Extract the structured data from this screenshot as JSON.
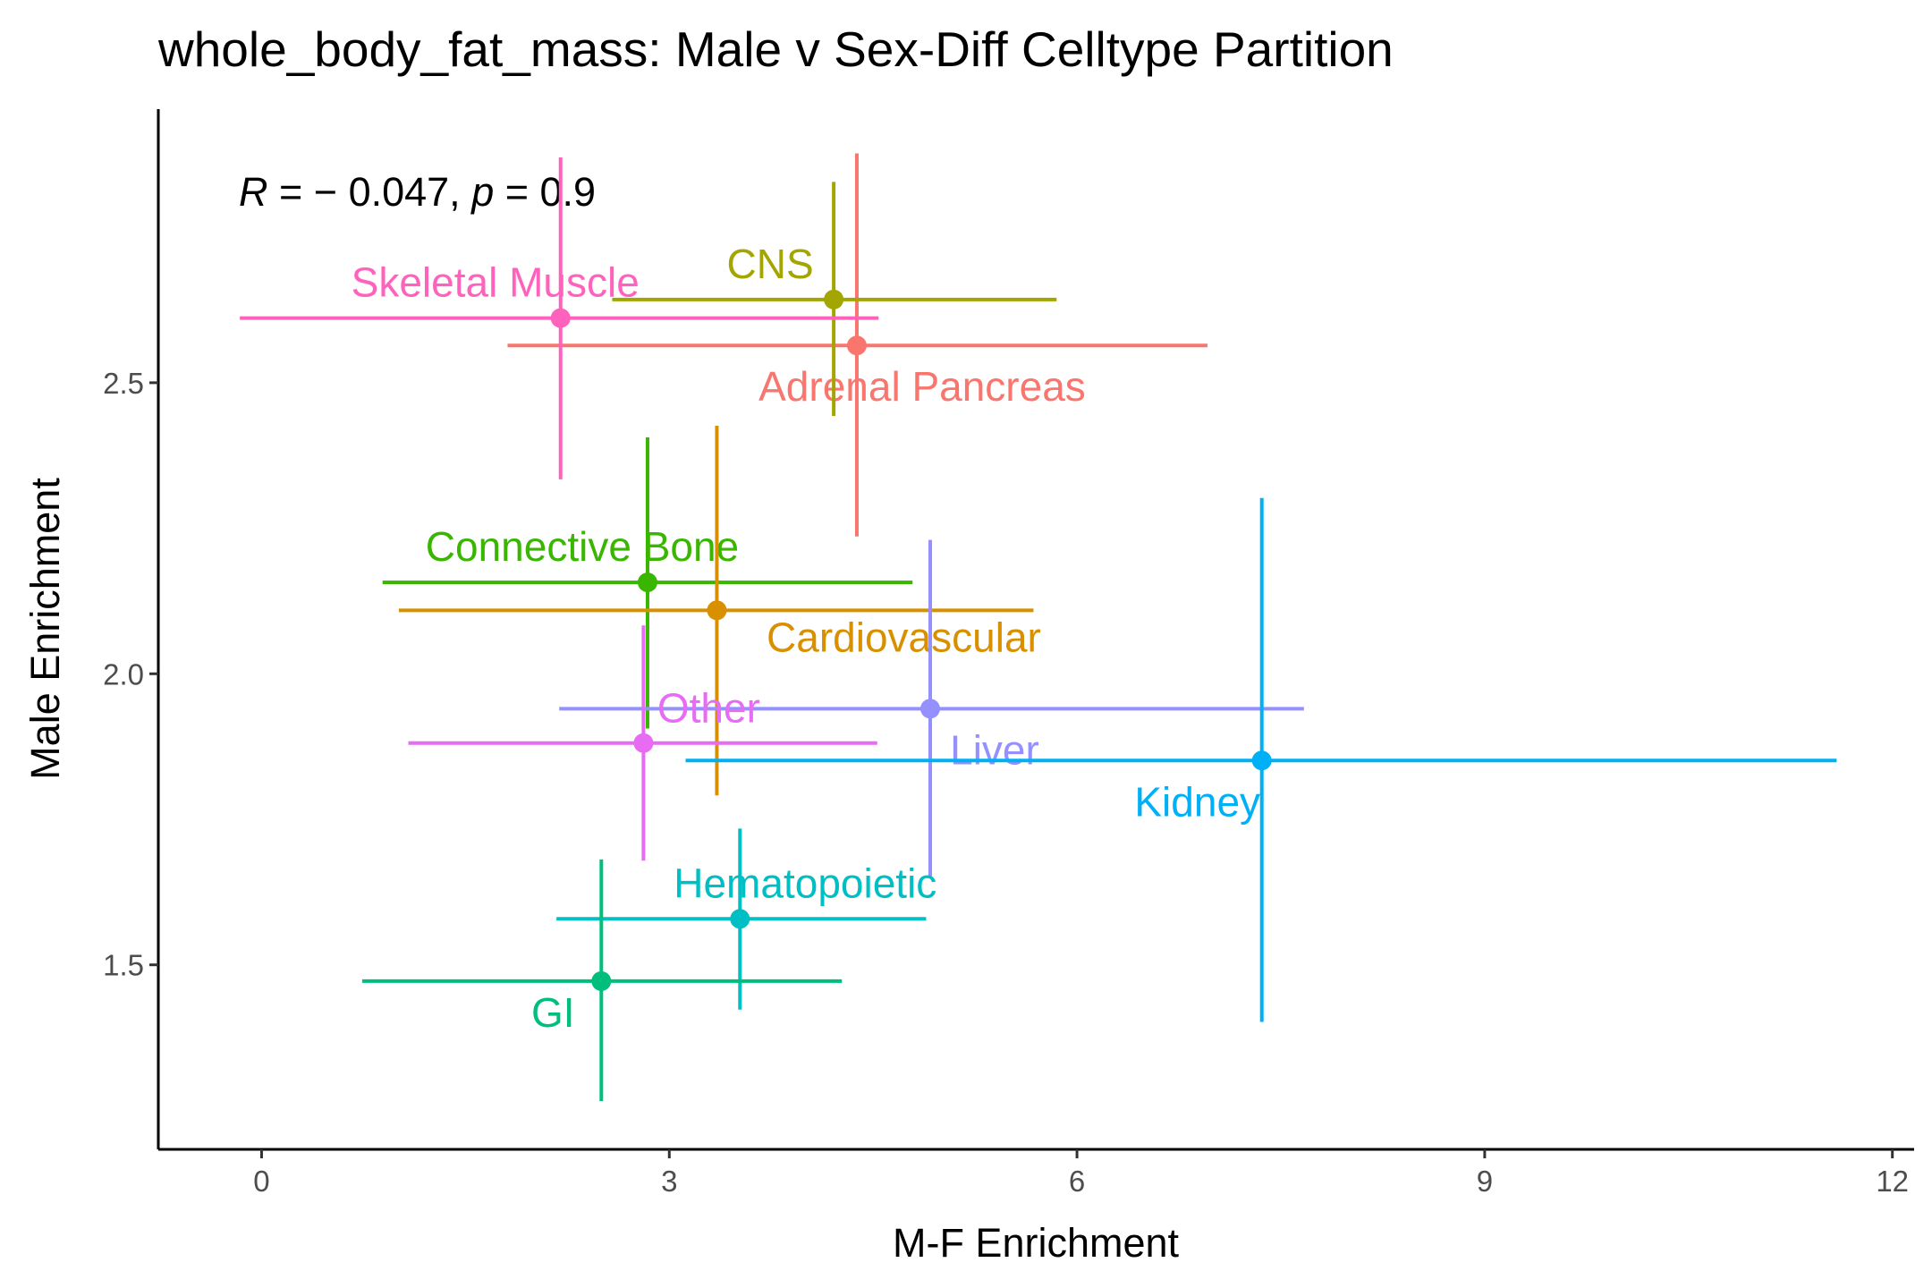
{
  "chart_data": {
    "type": "scatter",
    "title": "whole_body_fat_mass: Male v Sex-Diff Celltype Partition",
    "annotation": [
      "R",
      " = − 0.047, ",
      "p",
      " = 0.9"
    ],
    "x_label": "M-F Enrichment",
    "y_label": "Male Enrichment",
    "xlim": [
      -0.76,
      12.16
    ],
    "ylim": [
      1.183,
      2.97
    ],
    "xticks": [
      0,
      3,
      6,
      9,
      12
    ],
    "yticks": [
      1.5,
      {
        "value": 2,
        "label": "2.0"
      },
      2.5
    ],
    "series": [
      {
        "name": "Adrenal Pancreas",
        "color": "#F8766D",
        "x": [
          4.38
        ],
        "y": [
          2.564
        ],
        "xmin": [
          1.81
        ],
        "xmax": [
          6.96
        ],
        "ymin": [
          2.236
        ],
        "ymax": [
          2.894
        ]
      },
      {
        "name": "CNS",
        "color": "#A3A500",
        "x": [
          4.21
        ],
        "y": [
          2.643
        ],
        "xmin": [
          2.58
        ],
        "xmax": [
          5.85
        ],
        "ymin": [
          2.443
        ],
        "ymax": [
          2.845
        ]
      },
      {
        "name": "Skeletal Muscle",
        "color": "#FF62BC",
        "x": [
          2.2
        ],
        "y": [
          2.611
        ],
        "xmin": [
          -0.16
        ],
        "xmax": [
          4.54
        ],
        "ymin": [
          2.334
        ],
        "ymax": [
          2.887
        ]
      },
      {
        "name": "Connective Bone",
        "color": "#39B600",
        "x": [
          2.84
        ],
        "y": [
          2.157
        ],
        "xmin": [
          0.89
        ],
        "xmax": [
          4.79
        ],
        "ymin": [
          1.906
        ],
        "ymax": [
          2.406
        ]
      },
      {
        "name": "Cardiovascular",
        "color": "#D89000",
        "x": [
          3.35
        ],
        "y": [
          2.109
        ],
        "xmin": [
          1.01
        ],
        "xmax": [
          5.68
        ],
        "ymin": [
          1.791
        ],
        "ymax": [
          2.426
        ]
      },
      {
        "name": "Liver",
        "color": "#9590FF",
        "x": [
          4.92
        ],
        "y": [
          1.94
        ],
        "xmin": [
          2.19
        ],
        "xmax": [
          7.67
        ],
        "ymin": [
          1.651
        ],
        "ymax": [
          2.23
        ]
      },
      {
        "name": "Other",
        "color": "#E76BF3",
        "x": [
          2.81
        ],
        "y": [
          1.881
        ],
        "xmin": [
          1.08
        ],
        "xmax": [
          4.53
        ],
        "ymin": [
          1.679
        ],
        "ymax": [
          2.083
        ]
      },
      {
        "name": "Kidney",
        "color": "#00B0F6",
        "x": [
          7.36
        ],
        "y": [
          1.851
        ],
        "xmin": [
          3.12
        ],
        "xmax": [
          11.59
        ],
        "ymin": [
          1.402
        ],
        "ymax": [
          2.302
        ]
      },
      {
        "name": "Hematopoietic",
        "color": "#00BFC4",
        "x": [
          3.52
        ],
        "y": [
          1.579
        ],
        "xmin": [
          2.17
        ],
        "xmax": [
          4.89
        ],
        "ymin": [
          1.423
        ],
        "ymax": [
          1.734
        ]
      },
      {
        "name": "GI",
        "color": "#00BF7D",
        "x": [
          2.5
        ],
        "y": [
          1.472
        ],
        "xmin": [
          0.74
        ],
        "xmax": [
          4.27
        ],
        "ymin": [
          1.266
        ],
        "ymax": [
          1.681
        ]
      }
    ]
  }
}
